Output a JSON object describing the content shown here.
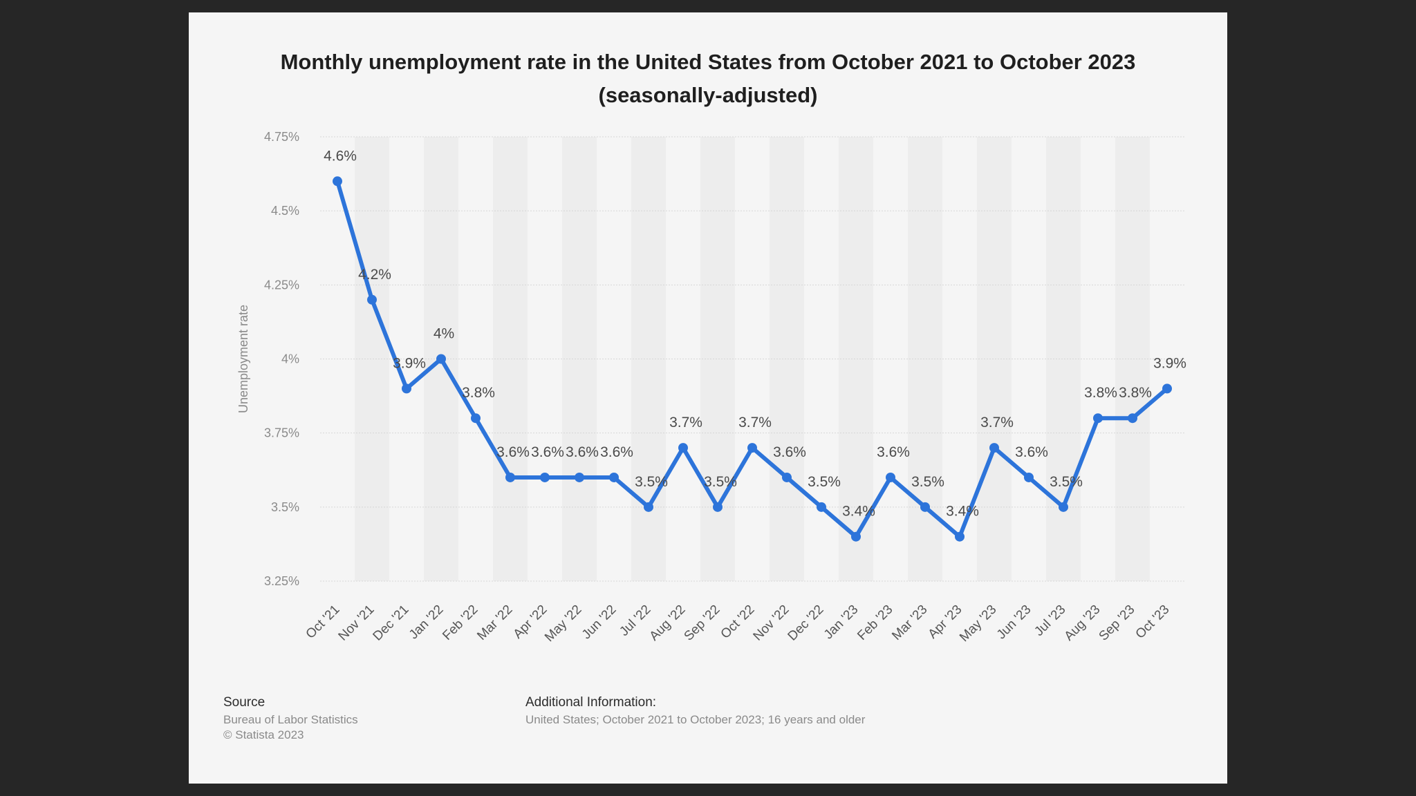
{
  "chart_data": {
    "type": "line",
    "title_line1": "Monthly unemployment rate in the United States from October 2021 to October 2023",
    "title_line2": "(seasonally-adjusted)",
    "ylabel": "Unemployment rate",
    "xlabel": "",
    "ylim": [
      3.25,
      4.75
    ],
    "yticks": [
      {
        "value": 4.75,
        "label": "4.75%"
      },
      {
        "value": 4.5,
        "label": "4.5%"
      },
      {
        "value": 4.25,
        "label": "4.25%"
      },
      {
        "value": 4.0,
        "label": "4%"
      },
      {
        "value": 3.75,
        "label": "3.75%"
      },
      {
        "value": 3.5,
        "label": "3.5%"
      },
      {
        "value": 3.25,
        "label": "3.25%"
      }
    ],
    "grid": true,
    "legend": "none",
    "categories": [
      "Oct '21",
      "Nov '21",
      "Dec '21",
      "Jan '22",
      "Feb '22",
      "Mar '22",
      "Apr '22",
      "May '22",
      "Jun '22",
      "Jul '22",
      "Aug '22",
      "Sep '22",
      "Oct '22",
      "Nov '22",
      "Dec '22",
      "Jan '23",
      "Feb '23",
      "Mar '23",
      "Apr '23",
      "May '23",
      "Jun '23",
      "Jul '23",
      "Aug '23",
      "Sep '23",
      "Oct '23"
    ],
    "values": [
      4.6,
      4.2,
      3.9,
      4.0,
      3.8,
      3.6,
      3.6,
      3.6,
      3.6,
      3.5,
      3.7,
      3.5,
      3.7,
      3.6,
      3.5,
      3.4,
      3.6,
      3.5,
      3.4,
      3.7,
      3.6,
      3.5,
      3.8,
      3.8,
      3.9
    ],
    "labels": [
      "4.6%",
      "4.2%",
      "3.9%",
      "4%",
      "3.8%",
      "3.6%",
      "3.6%",
      "3.6%",
      "3.6%",
      "3.5%",
      "3.7%",
      "3.5%",
      "3.7%",
      "3.6%",
      "3.5%",
      "3.4%",
      "3.6%",
      "3.5%",
      "3.4%",
      "3.7%",
      "3.6%",
      "3.5%",
      "3.8%",
      "3.8%",
      "3.9%"
    ],
    "line_color": "#2d74da"
  },
  "footer": {
    "source_heading": "Source",
    "source_lines": [
      "Bureau of Labor Statistics",
      "© Statista 2023"
    ],
    "info_heading": "Additional Information:",
    "info_text": "United States; October 2021 to October 2023; 16 years and older"
  }
}
